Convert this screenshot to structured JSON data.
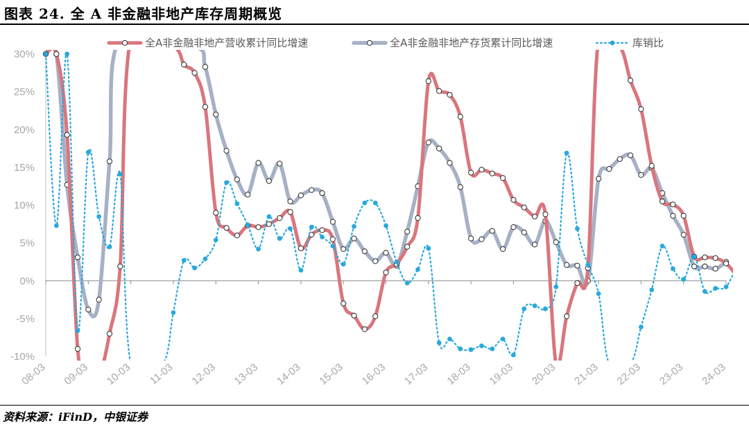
{
  "figure_title": "图表 24. 全 A 非金融非地产库存周期概览",
  "source_note": "资料来源：iFinD，中银证券",
  "colors": {
    "revenue": "#d9767d",
    "inventory": "#a7b1c5",
    "ratio": "#2aa8dc",
    "axis": "#bfbfbf",
    "tick": "#a6a6a6"
  },
  "chart_data": {
    "type": "line",
    "ylim": [
      -10,
      30
    ],
    "y_ticks": [
      -10,
      -5,
      0,
      5,
      10,
      15,
      20,
      25,
      30
    ],
    "y_tick_labels": [
      "-10%",
      "-5%",
      "0%",
      "5%",
      "10%",
      "15%",
      "20%",
      "25%",
      "30%"
    ],
    "x_ticks": [
      2008.25,
      2009.25,
      2010.25,
      2011.25,
      2012.25,
      2013.25,
      2014.25,
      2015.25,
      2016.25,
      2017.25,
      2018.25,
      2019.25,
      2020.25,
      2021.25,
      2022.25,
      2023.25,
      2024.25
    ],
    "x_tick_labels": [
      "08-03",
      "09-03",
      "10-03",
      "11-03",
      "12-03",
      "13-03",
      "14-03",
      "15-03",
      "16-03",
      "17-03",
      "18-03",
      "19-03",
      "20-03",
      "21-03",
      "22-03",
      "23-03",
      "24-03"
    ],
    "grid": false,
    "legend_position": "top",
    "series": [
      {
        "name": "全A非金融非地产营收累计同比增速",
        "key": "revenue",
        "points": [
          [
            2008.25,
            30
          ],
          [
            2008.5,
            30
          ],
          [
            2008.75,
            19.3
          ],
          [
            2009.0,
            -9
          ],
          [
            2009.25,
            -14
          ],
          [
            2009.5,
            -13
          ],
          [
            2009.75,
            -7
          ],
          [
            2010.0,
            1.9
          ],
          [
            2010.25,
            32
          ],
          [
            2011.25,
            31
          ],
          [
            2011.5,
            28.6
          ],
          [
            2011.75,
            27.5
          ],
          [
            2012.0,
            23
          ],
          [
            2012.25,
            9
          ],
          [
            2012.5,
            7
          ],
          [
            2012.75,
            6
          ],
          [
            2013.0,
            7.3
          ],
          [
            2013.25,
            7.1
          ],
          [
            2013.5,
            7.5
          ],
          [
            2013.75,
            8.3
          ],
          [
            2014.0,
            9.1
          ],
          [
            2014.25,
            4.3
          ],
          [
            2014.5,
            6.1
          ],
          [
            2014.75,
            6.7
          ],
          [
            2015.0,
            5.5
          ],
          [
            2015.25,
            -3
          ],
          [
            2015.5,
            -4.6
          ],
          [
            2015.75,
            -6.4
          ],
          [
            2016.0,
            -4.7
          ],
          [
            2016.25,
            1.1
          ],
          [
            2016.5,
            2.2
          ],
          [
            2016.75,
            4.5
          ],
          [
            2017.0,
            8.3
          ],
          [
            2017.25,
            26.4
          ],
          [
            2017.5,
            25.1
          ],
          [
            2017.75,
            24.6
          ],
          [
            2018.0,
            21.7
          ],
          [
            2018.25,
            14.3
          ],
          [
            2018.5,
            14.7
          ],
          [
            2018.75,
            14.2
          ],
          [
            2019.0,
            13.6
          ],
          [
            2019.25,
            10.7
          ],
          [
            2019.5,
            9.7
          ],
          [
            2019.75,
            8.5
          ],
          [
            2020.0,
            8.8
          ],
          [
            2020.25,
            -11
          ],
          [
            2020.5,
            -4.7
          ],
          [
            2020.75,
            -0.3
          ],
          [
            2021.0,
            1.7
          ],
          [
            2021.25,
            32
          ],
          [
            2021.75,
            31
          ],
          [
            2022.0,
            26.5
          ],
          [
            2022.25,
            22.7
          ],
          [
            2022.5,
            15.2
          ],
          [
            2022.75,
            10.5
          ],
          [
            2023.0,
            10.1
          ],
          [
            2023.25,
            8.6
          ],
          [
            2023.5,
            3.2
          ],
          [
            2023.75,
            3.1
          ],
          [
            2024.0,
            3.0
          ],
          [
            2024.25,
            2.3
          ],
          [
            2024.5,
            0.7
          ]
        ]
      },
      {
        "name": "全A非金融非地产存货累计同比增速",
        "key": "inventory",
        "points": [
          [
            2008.25,
            30
          ],
          [
            2008.5,
            30
          ],
          [
            2008.75,
            12.7
          ],
          [
            2009.0,
            3.1
          ],
          [
            2009.25,
            -3.8
          ],
          [
            2009.5,
            -2.5
          ],
          [
            2009.75,
            15.8
          ],
          [
            2010.0,
            32
          ],
          [
            2011.75,
            31
          ],
          [
            2012.0,
            28.3
          ],
          [
            2012.25,
            22.0
          ],
          [
            2012.5,
            17.2
          ],
          [
            2012.75,
            13.4
          ],
          [
            2013.0,
            11.4
          ],
          [
            2013.25,
            15.6
          ],
          [
            2013.5,
            13.2
          ],
          [
            2013.75,
            15.5
          ],
          [
            2014.0,
            10.5
          ],
          [
            2014.25,
            11.3
          ],
          [
            2014.5,
            12.0
          ],
          [
            2014.75,
            11.6
          ],
          [
            2015.0,
            7.8
          ],
          [
            2015.25,
            4.2
          ],
          [
            2015.5,
            5.6
          ],
          [
            2015.75,
            3.9
          ],
          [
            2016.0,
            2.6
          ],
          [
            2016.25,
            3.7
          ],
          [
            2016.5,
            2.0
          ],
          [
            2016.75,
            6.5
          ],
          [
            2017.0,
            12.5
          ],
          [
            2017.25,
            18.3
          ],
          [
            2017.5,
            17.5
          ],
          [
            2017.75,
            15.6
          ],
          [
            2018.0,
            12.4
          ],
          [
            2018.25,
            5.6
          ],
          [
            2018.5,
            5.5
          ],
          [
            2018.75,
            6.6
          ],
          [
            2019.0,
            4.2
          ],
          [
            2019.25,
            7.1
          ],
          [
            2019.5,
            6.4
          ],
          [
            2019.75,
            4.8
          ],
          [
            2020.0,
            7.9
          ],
          [
            2020.25,
            5.1
          ],
          [
            2020.5,
            2.1
          ],
          [
            2020.75,
            2.0
          ],
          [
            2021.0,
            0.0
          ],
          [
            2021.25,
            13.5
          ],
          [
            2021.5,
            14.8
          ],
          [
            2021.75,
            16.1
          ],
          [
            2022.0,
            16.6
          ],
          [
            2022.25,
            14.0
          ],
          [
            2022.5,
            14.9
          ],
          [
            2022.75,
            11.6
          ],
          [
            2023.0,
            8.6
          ],
          [
            2023.25,
            6.1
          ],
          [
            2023.5,
            1.9
          ],
          [
            2023.75,
            1.9
          ],
          [
            2024.0,
            1.6
          ],
          [
            2024.25,
            2.5
          ]
        ]
      },
      {
        "name": "库销比",
        "key": "ratio",
        "points": [
          [
            2008.25,
            30
          ],
          [
            2008.5,
            7.3
          ],
          [
            2008.75,
            30
          ],
          [
            2009.0,
            -6.6
          ],
          [
            2009.25,
            17.0
          ],
          [
            2009.5,
            8.5
          ],
          [
            2009.75,
            4.5
          ],
          [
            2010.0,
            14.1
          ],
          [
            2010.25,
            -11
          ],
          [
            2011.0,
            -11
          ],
          [
            2011.25,
            -4.2
          ],
          [
            2011.5,
            2.7
          ],
          [
            2011.75,
            1.7
          ],
          [
            2012.0,
            2.9
          ],
          [
            2012.25,
            5.4
          ],
          [
            2012.5,
            13.0
          ],
          [
            2012.75,
            10.2
          ],
          [
            2013.0,
            7.4
          ],
          [
            2013.25,
            4.2
          ],
          [
            2013.5,
            8.5
          ],
          [
            2013.75,
            5.6
          ],
          [
            2014.0,
            6.9
          ],
          [
            2014.25,
            1.4
          ],
          [
            2014.5,
            7.1
          ],
          [
            2014.75,
            5.8
          ],
          [
            2015.0,
            4.6
          ],
          [
            2015.25,
            2.2
          ],
          [
            2015.5,
            7.2
          ],
          [
            2015.75,
            10.3
          ],
          [
            2016.0,
            10.3
          ],
          [
            2016.25,
            7.3
          ],
          [
            2016.5,
            2.5
          ],
          [
            2016.75,
            -0.3
          ],
          [
            2017.0,
            1.5
          ],
          [
            2017.25,
            4.3
          ],
          [
            2017.5,
            -8.2
          ],
          [
            2017.75,
            -7.7
          ],
          [
            2018.0,
            -9.0
          ],
          [
            2018.25,
            -9.1
          ],
          [
            2018.5,
            -8.6
          ],
          [
            2018.75,
            -9.0
          ],
          [
            2019.0,
            -7.7
          ],
          [
            2019.25,
            -9.8
          ],
          [
            2019.5,
            -3.7
          ],
          [
            2019.75,
            -3.3
          ],
          [
            2020.0,
            -3.7
          ],
          [
            2020.25,
            -0.8
          ],
          [
            2020.5,
            16.9
          ],
          [
            2020.75,
            6.9
          ],
          [
            2021.0,
            2.1
          ],
          [
            2021.25,
            -1.7
          ],
          [
            2021.5,
            -11
          ],
          [
            2022.0,
            -11
          ],
          [
            2022.25,
            -6.1
          ],
          [
            2022.5,
            -1.2
          ],
          [
            2022.75,
            4.6
          ],
          [
            2023.0,
            1.6
          ],
          [
            2023.25,
            0.2
          ],
          [
            2023.5,
            3.2
          ],
          [
            2023.75,
            -1.4
          ],
          [
            2024.0,
            -1.0
          ],
          [
            2024.25,
            -0.8
          ],
          [
            2024.5,
            1.9
          ]
        ]
      }
    ]
  }
}
